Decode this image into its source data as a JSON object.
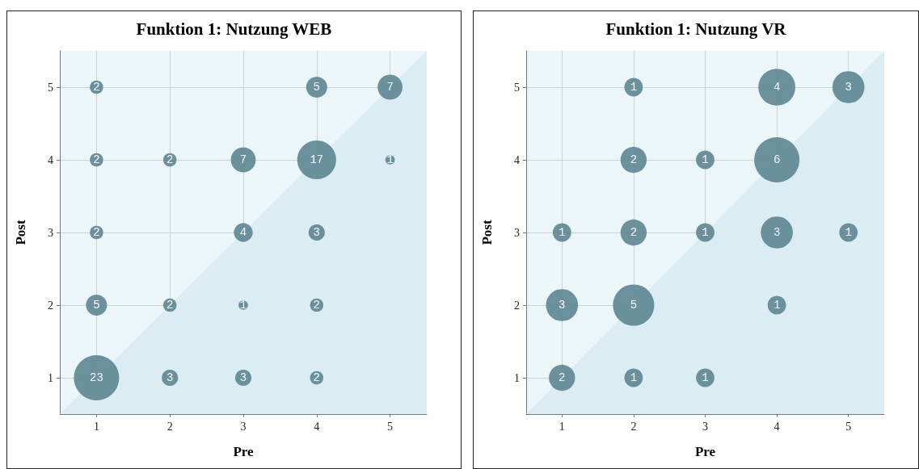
{
  "chart_data": [
    {
      "type": "bubble",
      "title": "Funktion 1: Nutzung WEB",
      "xlabel": "Pre",
      "ylabel": "Post",
      "xlim": [
        0.5,
        5.5
      ],
      "ylim": [
        0.5,
        5.5
      ],
      "xticks": [
        1,
        2,
        3,
        4,
        5
      ],
      "yticks": [
        1,
        2,
        3,
        4,
        5
      ],
      "grid": true,
      "series": [
        {
          "type": "area",
          "color": "#dbedf3",
          "marker": "none",
          "x": [
            0.5,
            5.5
          ],
          "values": [
            0.5,
            5.5
          ]
        },
        {
          "color": "#648b98",
          "marker": "circle",
          "x": [
            1,
            4,
            5,
            1,
            2,
            3,
            4,
            5,
            1,
            3,
            4,
            1,
            2,
            3,
            4,
            1,
            2,
            3,
            4
          ],
          "values": [
            5,
            5,
            5,
            4,
            4,
            4,
            4,
            4,
            3,
            3,
            3,
            2,
            2,
            2,
            2,
            1,
            1,
            1,
            1
          ],
          "sizes": [
            2,
            5,
            7,
            2,
            2,
            7,
            17,
            1,
            2,
            4,
            3,
            5,
            2,
            1,
            2,
            23,
            3,
            3,
            2
          ],
          "value_labels": [
            "2",
            "5",
            "7",
            "2",
            "2",
            "7",
            "17",
            "1",
            "2",
            "4",
            "3",
            "5",
            "2",
            "1",
            "2",
            "23",
            "3",
            "3",
            "2"
          ]
        }
      ]
    },
    {
      "type": "bubble",
      "title": "Funktion 1: Nutzung VR",
      "xlabel": "Pre",
      "ylabel": "Post",
      "xlim": [
        0.5,
        5.5
      ],
      "ylim": [
        0.5,
        5.5
      ],
      "xticks": [
        1,
        2,
        3,
        4,
        5
      ],
      "yticks": [
        1,
        2,
        3,
        4,
        5
      ],
      "grid": true,
      "series": [
        {
          "type": "area",
          "color": "#dbedf3",
          "marker": "none",
          "x": [
            0.5,
            5.5
          ],
          "values": [
            0.5,
            5.5
          ]
        },
        {
          "color": "#648b98",
          "marker": "circle",
          "x": [
            2,
            4,
            5,
            2,
            3,
            4,
            1,
            2,
            3,
            4,
            5,
            1,
            2,
            4,
            1,
            2,
            3
          ],
          "values": [
            5,
            5,
            5,
            4,
            4,
            4,
            3,
            3,
            3,
            3,
            3,
            2,
            2,
            2,
            1,
            1,
            1
          ],
          "sizes": [
            1,
            4,
            3,
            2,
            1,
            6,
            1,
            2,
            1,
            3,
            1,
            3,
            5,
            1,
            2,
            1,
            1
          ],
          "value_labels": [
            "1",
            "4",
            "3",
            "2",
            "1",
            "6",
            "1",
            "2",
            "1",
            "3",
            "1",
            "3",
            "5",
            "1",
            "2",
            "1",
            "1"
          ]
        }
      ]
    }
  ]
}
